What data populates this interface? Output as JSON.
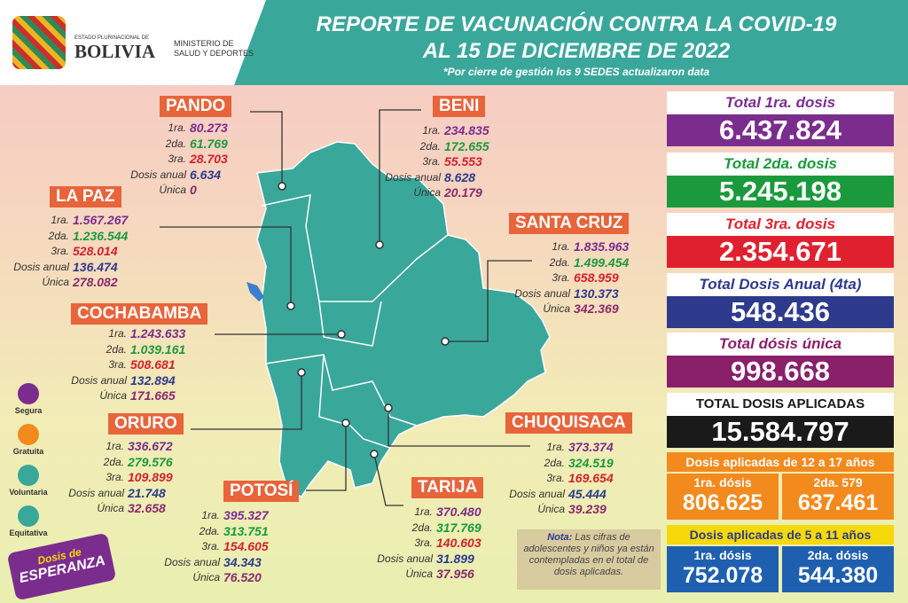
{
  "header": {
    "logo_line1": "ESTADO PLURINACIONAL DE",
    "logo_line2": "BOLIVIA",
    "ministry_line1": "MINISTERIO DE",
    "ministry_line2": "SALUD Y DEPORTES",
    "title_line1": "REPORTE DE VACUNACIÓN CONTRA LA COVID-19",
    "title_line2": "AL 15 DE DICIEMBRE DE 2022",
    "subtitle": "*Por cierre de gestión los 9 SEDES actualizaron data"
  },
  "departments": [
    {
      "name": "PANDO",
      "rows": [
        {
          "label": "1ra.",
          "value": "80.273"
        },
        {
          "label": "2da.",
          "value": "61.769"
        },
        {
          "label": "3ra.",
          "value": "28.703"
        },
        {
          "label": "Dosis anual",
          "value": "6.634"
        },
        {
          "label": "Única",
          "value": "0"
        }
      ]
    },
    {
      "name": "BENI",
      "rows": [
        {
          "label": "1ra.",
          "value": "234.835"
        },
        {
          "label": "2da.",
          "value": "172.655"
        },
        {
          "label": "3ra.",
          "value": "55.553"
        },
        {
          "label": "Dosis anual",
          "value": "8.628"
        },
        {
          "label": "Única",
          "value": "20.179"
        }
      ]
    },
    {
      "name": "LA PAZ",
      "rows": [
        {
          "label": "1ra.",
          "value": "1.567.267"
        },
        {
          "label": "2da.",
          "value": "1.236.544"
        },
        {
          "label": "3ra.",
          "value": "528.014"
        },
        {
          "label": "Dosis anual",
          "value": "136.474"
        },
        {
          "label": "Única",
          "value": "278.082"
        }
      ]
    },
    {
      "name": "SANTA CRUZ",
      "rows": [
        {
          "label": "1ra.",
          "value": "1.835.963"
        },
        {
          "label": "2da.",
          "value": "1.499.454"
        },
        {
          "label": "3ra.",
          "value": "658.959"
        },
        {
          "label": "Dosis anual",
          "value": "130.373"
        },
        {
          "label": "Única",
          "value": "342.369"
        }
      ]
    },
    {
      "name": "COCHABAMBA",
      "rows": [
        {
          "label": "1ra.",
          "value": "1.243.633"
        },
        {
          "label": "2da.",
          "value": "1.039.161"
        },
        {
          "label": "3ra.",
          "value": "508.681"
        },
        {
          "label": "Dosis anual",
          "value": "132.894"
        },
        {
          "label": "Única",
          "value": "171.665"
        }
      ]
    },
    {
      "name": "ORURO",
      "rows": [
        {
          "label": "1ra.",
          "value": "336.672"
        },
        {
          "label": "2da.",
          "value": "279.576"
        },
        {
          "label": "3ra.",
          "value": "109.899"
        },
        {
          "label": "Dosis anual",
          "value": "21.748"
        },
        {
          "label": "Única",
          "value": "32.658"
        }
      ]
    },
    {
      "name": "CHUQUISACA",
      "rows": [
        {
          "label": "1ra.",
          "value": "373.374"
        },
        {
          "label": "2da.",
          "value": "324.519"
        },
        {
          "label": "3ra.",
          "value": "169.654"
        },
        {
          "label": "Dosis anual",
          "value": "45.444"
        },
        {
          "label": "Única",
          "value": "39.239"
        }
      ]
    },
    {
      "name": "POTOSÍ",
      "rows": [
        {
          "label": "1ra.",
          "value": "395.327"
        },
        {
          "label": "2da.",
          "value": "313.751"
        },
        {
          "label": "3ra.",
          "value": "154.605"
        },
        {
          "label": "Dosis anual",
          "value": "34.343"
        },
        {
          "label": "Única",
          "value": "76.520"
        }
      ]
    },
    {
      "name": "TARIJA",
      "rows": [
        {
          "label": "1ra.",
          "value": "370.480"
        },
        {
          "label": "2da.",
          "value": "317.769"
        },
        {
          "label": "3ra.",
          "value": "140.603"
        },
        {
          "label": "Dosis anual",
          "value": "31.899"
        },
        {
          "label": "Única",
          "value": "37.956"
        }
      ]
    }
  ],
  "totals": [
    {
      "label": "Total 1ra. dosis",
      "value": "6.437.824"
    },
    {
      "label": "Total 2da. dosis",
      "value": "5.245.198"
    },
    {
      "label": "Total 3ra. dosis",
      "value": "2.354.671"
    },
    {
      "label": "Total Dosis Anual (4ta)",
      "value": "548.436"
    },
    {
      "label": "Total dósis única",
      "value": "998.668"
    },
    {
      "label": "TOTAL DOSIS APLICADAS",
      "value": "15.584.797"
    }
  ],
  "age_groups": [
    {
      "title": "Dosis aplicadas de 12 a 17 años",
      "items": [
        {
          "label": "1ra. dósis",
          "value": "806.625"
        },
        {
          "label": "2da. 579",
          "value": "637.461"
        }
      ]
    },
    {
      "title": "Dosis aplicadas de 5 a 11 años",
      "items": [
        {
          "label": "1ra. dósis",
          "value": "752.078"
        },
        {
          "label": "2da. dósis",
          "value": "544.380"
        }
      ]
    }
  ],
  "legend": [
    "Segura",
    "Gratuita",
    "Voluntaria",
    "Equitativa"
  ],
  "campaign": {
    "line1": "Dosis de",
    "line2": "ESPERANZA"
  },
  "note": {
    "lead": "Nota:",
    "text": "Las cifras de adolescentes y niños ya están contempladas en el total de dosis aplicadas."
  }
}
